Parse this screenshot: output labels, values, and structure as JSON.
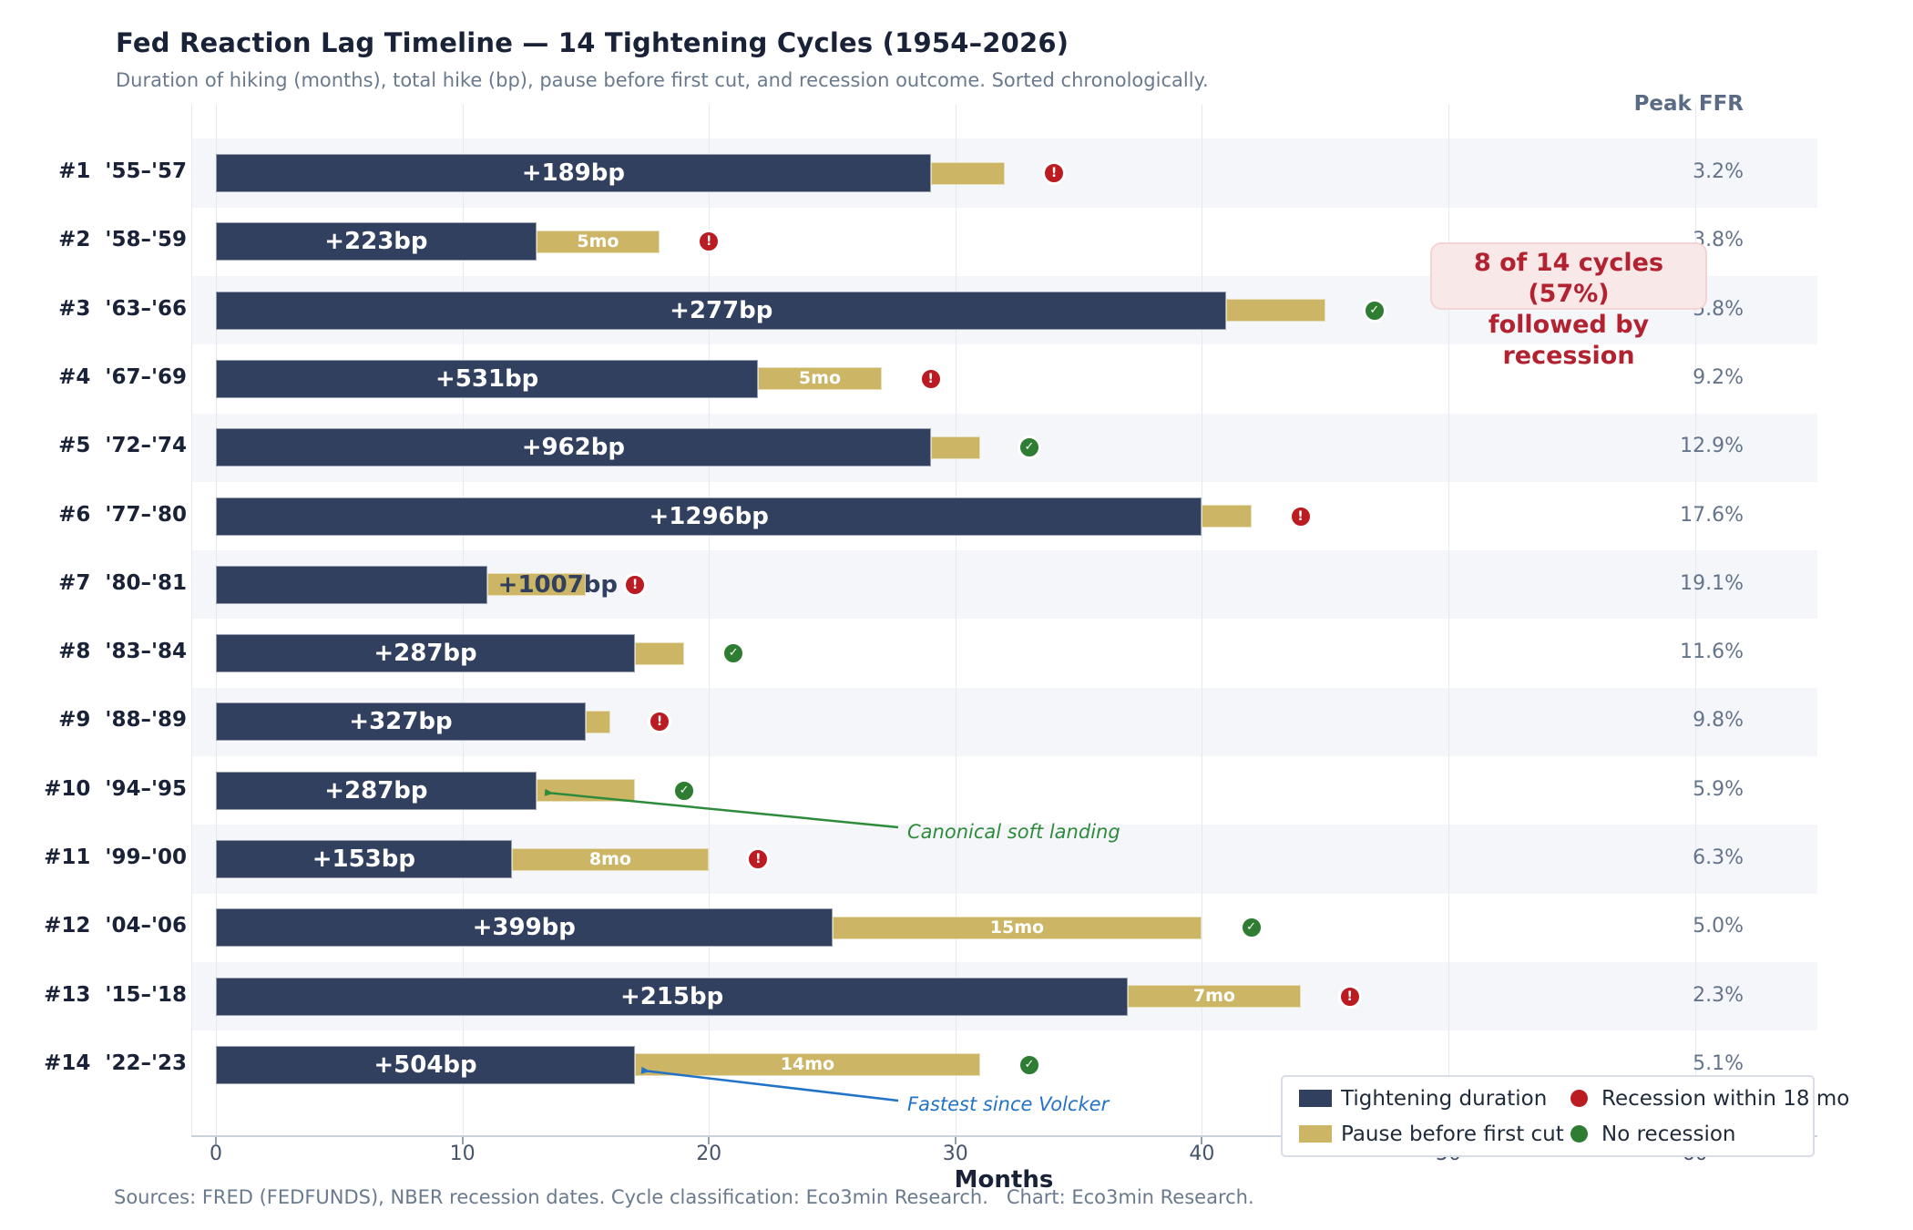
{
  "header": {
    "title": "Fed Reaction Lag Timeline — 14 Tightening Cycles (1954–2026)",
    "subtitle": "Duration of hiking (months), total hike (bp), pause before first cut, and recession outcome. Sorted chronologically."
  },
  "peak_ffr_header": "Peak FFR",
  "stat_callout": {
    "line1": "8 of 14 cycles (57%)",
    "line2": "followed by recession"
  },
  "annotations": {
    "soft_landing": {
      "text": "Canonical soft landing",
      "color": "#2e8b3c"
    },
    "volcker": {
      "text": "Fastest since Volcker",
      "color": "#2273c8"
    }
  },
  "legend": {
    "tightening_label": "Tightening duration",
    "pause_label": "Pause before first cut",
    "recession_label": "Recession within 18 mo",
    "no_recession_label": "No recession"
  },
  "footer": "Sources: FRED (FEDFUNDS), NBER recession dates. Cycle classification: Eco3min Research.   Chart: Eco3min Research.",
  "colors": {
    "tightening_bar": "#31405f",
    "pause_bar": "#cdb566",
    "recession_marker": "#bb1c22",
    "no_recession_marker": "#2e7d32",
    "band": "#f5f6f9",
    "callout_text": "#b22230",
    "callout_bg": "#f9e8e8"
  },
  "marker_glyphs": {
    "recession": "!",
    "no_recession": "✓"
  },
  "chart_data": {
    "type": "bar",
    "orientation": "horizontal",
    "title": "Fed Reaction Lag Timeline — 14 Tightening Cycles (1954–2026)",
    "xlabel": "Months",
    "x_ticks": [
      0,
      10,
      20,
      30,
      40,
      50,
      60
    ],
    "x_range": [
      -1,
      65
    ],
    "grid": true,
    "marker_offset_months": 2,
    "series_meaning": "hike_months = navy bar length; pause_months = tan bar stacked after it; outcome marker plotted 2 months after pause end",
    "cycles": [
      {
        "num": "#1",
        "years": "'55–'57",
        "hike_months": 29,
        "hike_bp": 189,
        "bp_label": "+189bp",
        "bp_label_inside": true,
        "pause_months": 3,
        "pause_label": "",
        "outcome": "recession",
        "peak_ffr": "3.2%"
      },
      {
        "num": "#2",
        "years": "'58–'59",
        "hike_months": 13,
        "hike_bp": 223,
        "bp_label": "+223bp",
        "bp_label_inside": true,
        "pause_months": 5,
        "pause_label": "5mo",
        "outcome": "recession",
        "peak_ffr": "3.8%"
      },
      {
        "num": "#3",
        "years": "'63–'66",
        "hike_months": 41,
        "hike_bp": 277,
        "bp_label": "+277bp",
        "bp_label_inside": true,
        "pause_months": 4,
        "pause_label": "",
        "outcome": "no_recession",
        "peak_ffr": "5.8%"
      },
      {
        "num": "#4",
        "years": "'67–'69",
        "hike_months": 22,
        "hike_bp": 531,
        "bp_label": "+531bp",
        "bp_label_inside": true,
        "pause_months": 5,
        "pause_label": "5mo",
        "outcome": "recession",
        "peak_ffr": "9.2%"
      },
      {
        "num": "#5",
        "years": "'72–'74",
        "hike_months": 29,
        "hike_bp": 962,
        "bp_label": "+962bp",
        "bp_label_inside": true,
        "pause_months": 2,
        "pause_label": "",
        "outcome": "no_recession",
        "peak_ffr": "12.9%"
      },
      {
        "num": "#6",
        "years": "'77–'80",
        "hike_months": 40,
        "hike_bp": 1296,
        "bp_label": "+1296bp",
        "bp_label_inside": true,
        "pause_months": 2,
        "pause_label": "",
        "outcome": "recession",
        "peak_ffr": "17.6%"
      },
      {
        "num": "#7",
        "years": "'80–'81",
        "hike_months": 11,
        "hike_bp": 1007,
        "bp_label": "+1007bp",
        "bp_label_inside": false,
        "pause_months": 4,
        "pause_label": "",
        "outcome": "recession",
        "peak_ffr": "19.1%"
      },
      {
        "num": "#8",
        "years": "'83–'84",
        "hike_months": 17,
        "hike_bp": 287,
        "bp_label": "+287bp",
        "bp_label_inside": true,
        "pause_months": 2,
        "pause_label": "",
        "outcome": "no_recession",
        "peak_ffr": "11.6%"
      },
      {
        "num": "#9",
        "years": "'88–'89",
        "hike_months": 15,
        "hike_bp": 327,
        "bp_label": "+327bp",
        "bp_label_inside": true,
        "pause_months": 1,
        "pause_label": "",
        "outcome": "recession",
        "peak_ffr": "9.8%"
      },
      {
        "num": "#10",
        "years": "'94–'95",
        "hike_months": 13,
        "hike_bp": 287,
        "bp_label": "+287bp",
        "bp_label_inside": true,
        "pause_months": 4,
        "pause_label": "",
        "outcome": "no_recession",
        "peak_ffr": "5.9%"
      },
      {
        "num": "#11",
        "years": "'99–'00",
        "hike_months": 12,
        "hike_bp": 153,
        "bp_label": "+153bp",
        "bp_label_inside": true,
        "pause_months": 8,
        "pause_label": "8mo",
        "outcome": "recession",
        "peak_ffr": "6.3%"
      },
      {
        "num": "#12",
        "years": "'04–'06",
        "hike_months": 25,
        "hike_bp": 399,
        "bp_label": "+399bp",
        "bp_label_inside": true,
        "pause_months": 15,
        "pause_label": "15mo",
        "outcome": "no_recession",
        "peak_ffr": "5.0%"
      },
      {
        "num": "#13",
        "years": "'15–'18",
        "hike_months": 37,
        "hike_bp": 215,
        "bp_label": "+215bp",
        "bp_label_inside": true,
        "pause_months": 7,
        "pause_label": "7mo",
        "outcome": "recession",
        "peak_ffr": "2.3%"
      },
      {
        "num": "#14",
        "years": "'22–'23",
        "hike_months": 17,
        "hike_bp": 504,
        "bp_label": "+504bp",
        "bp_label_inside": true,
        "pause_months": 14,
        "pause_label": "14mo",
        "outcome": "no_recession",
        "peak_ffr": "5.1%"
      }
    ]
  }
}
